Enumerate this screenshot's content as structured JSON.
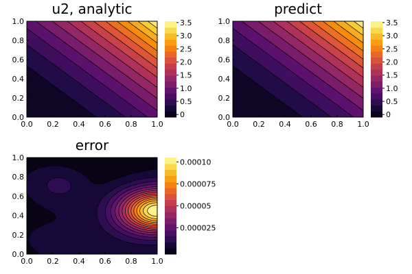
{
  "colormap": {
    "name": "inferno",
    "stops": [
      "#000004",
      "#1f0c48",
      "#550f6d",
      "#88226a",
      "#ba3655",
      "#e35933",
      "#f98e09",
      "#f9c932",
      "#fcffa4"
    ]
  },
  "chart_data": [
    {
      "id": "u2-analytic",
      "type": "heatmap",
      "subtype": "filled-contour",
      "title": "u2, analytic",
      "xlim": [
        0.0,
        1.0
      ],
      "ylim": [
        0.0,
        1.0
      ],
      "xticks": [
        "0.0",
        "0.2",
        "0.4",
        "0.6",
        "0.8",
        "1.0"
      ],
      "yticks": [
        "0.0",
        "0.2",
        "0.4",
        "0.6",
        "0.8",
        "1.0"
      ],
      "colorbar": {
        "min": -0.1,
        "max": 3.55,
        "ticks": [
          0,
          0.5,
          1.0,
          1.5,
          2.0,
          2.5,
          3.0,
          3.5
        ],
        "tick_labels": [
          "0",
          "0.5",
          "1.0",
          "1.5",
          "2.0",
          "2.5",
          "3.0",
          "3.5"
        ]
      },
      "levels": [
        0.0,
        0.25,
        0.5,
        0.75,
        1.0,
        1.25,
        1.5,
        1.75,
        2.0,
        2.25,
        2.5,
        2.75,
        3.0,
        3.25,
        3.5
      ],
      "field": "u2 = (x + y)^2 with corner value 0 at (0,0) and about 3.5 at (1,1)"
    },
    {
      "id": "predict",
      "type": "heatmap",
      "subtype": "filled-contour",
      "title": "predict",
      "xlim": [
        0.0,
        1.0
      ],
      "ylim": [
        0.0,
        1.0
      ],
      "xticks": [
        "0.0",
        "0.2",
        "0.4",
        "0.6",
        "0.8",
        "1.0"
      ],
      "yticks": [
        "0.0",
        "0.2",
        "0.4",
        "0.6",
        "0.8",
        "1.0"
      ],
      "colorbar": {
        "min": -0.1,
        "max": 3.55,
        "ticks": [
          0,
          0.5,
          1.0,
          1.5,
          2.0,
          2.5,
          3.0,
          3.5
        ],
        "tick_labels": [
          "0",
          "0.5",
          "1.0",
          "1.5",
          "2.0",
          "2.5",
          "3.0",
          "3.5"
        ]
      },
      "levels": [
        0.0,
        0.25,
        0.5,
        0.75,
        1.0,
        1.25,
        1.5,
        1.75,
        2.0,
        2.25,
        2.5,
        2.75,
        3.0,
        3.25,
        3.5
      ],
      "field": "same as analytic"
    },
    {
      "id": "error",
      "type": "heatmap",
      "subtype": "filled-contour",
      "title": "error",
      "xlim": [
        0.0,
        1.0
      ],
      "ylim": [
        0.0,
        1.0
      ],
      "xticks": [
        "0.0",
        "0.2",
        "0.4",
        "0.6",
        "0.8",
        "1.0"
      ],
      "yticks": [
        "0.0",
        "0.2",
        "0.4",
        "0.6",
        "0.8",
        "1.0"
      ],
      "colorbar": {
        "min": -5e-06,
        "max": 0.000105,
        "ticks": [
          2.5e-05,
          5e-05,
          7.5e-05,
          0.0001
        ],
        "tick_labels": [
          "0.000025",
          "0.00005",
          "0.000075",
          "0.00010"
        ]
      },
      "levels_count": 16,
      "peak": {
        "x": 1.0,
        "y": 0.45,
        "value": 0.000105
      }
    }
  ]
}
